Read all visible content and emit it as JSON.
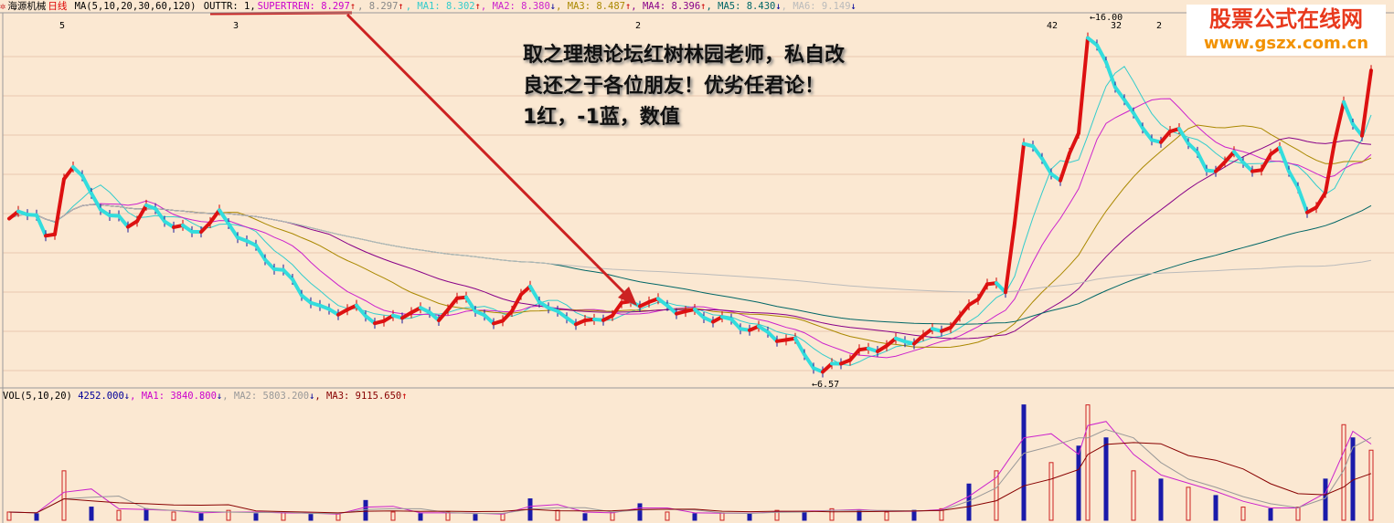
{
  "header": {
    "icon": "gear-icon",
    "stock_name": "海源机械",
    "period": "日线",
    "indicator": "MA(5,10,20,30,60,120)",
    "outtr": "OUTTR: 1,",
    "supertrend": "SUPERTREN: 8.297",
    "supertrend_arrow": "↑",
    "supertrend2": ", 8.297",
    "supertrend2_arrow": "↑",
    "ma": [
      {
        "label": ", MA1: 8.302",
        "arrow": "↑",
        "color": "#33cccc",
        "arrow_color": "#cc0000"
      },
      {
        "label": ", MA2: 8.380",
        "arrow": "↓",
        "color": "#cc22cc",
        "arrow_color": "#000099"
      },
      {
        "label": ", MA3: 8.487",
        "arrow": "↑",
        "color": "#aa8800",
        "arrow_color": "#cc0000"
      },
      {
        "label": ", MA4: 8.396",
        "arrow": "↑",
        "color": "#880088",
        "arrow_color": "#cc0000"
      },
      {
        "label": ", MA5: 8.430",
        "arrow": "↓",
        "color": "#006666",
        "arrow_color": "#000099"
      },
      {
        "label": ", MA6: 9.149",
        "arrow": "↓",
        "color": "#bbbbbb",
        "arrow_color": "#000099"
      }
    ]
  },
  "volume_header": {
    "indicator": "VOL(5,10,20)",
    "value": "4252.000",
    "value_arrow": "↓",
    "ma1": ", MA1: 3840.800",
    "ma1_arrow": "↓",
    "ma2": ", MA2: 5803.200",
    "ma2_arrow": "↓",
    "ma3": ", MA3: 9115.650",
    "ma3_arrow": "↑"
  },
  "markers": [
    {
      "text": "5",
      "bar": 3
    },
    {
      "text": "3",
      "bar": 22
    },
    {
      "text": "2",
      "bar": 66
    },
    {
      "text": "42",
      "bar": 111
    },
    {
      "text": "32",
      "bar": 118
    },
    {
      "text": "2",
      "bar": 123
    }
  ],
  "annotation": {
    "lines": [
      "取之理想论坛红树林园老师，私自改",
      "良还之于各位朋友！优劣任君论！",
      "1红，-1蓝，数值"
    ]
  },
  "logo": {
    "line1": "股票公式在线网",
    "line2": "www.gszx.com.cn"
  },
  "colors": {
    "background": "#fbe8d2",
    "up_trend": "#dd1111",
    "down_trend": "#33dddd",
    "annotation_arrow": "#cc2222"
  },
  "chart_data": [
    {
      "type": "line",
      "title": "海源机械 日线",
      "high_label": "16.00",
      "low_label": "6.57",
      "ylim": [
        6.4,
        16.4
      ],
      "key_closes": [
        [
          0,
          10.8
        ],
        [
          3,
          11.0
        ],
        [
          4,
          10.3
        ],
        [
          5,
          10.3
        ],
        [
          6,
          11.9
        ],
        [
          7,
          12.2
        ],
        [
          9,
          11.4
        ],
        [
          11,
          10.9
        ],
        [
          13,
          10.6
        ],
        [
          15,
          11.1
        ],
        [
          17,
          10.8
        ],
        [
          20,
          10.4
        ],
        [
          23,
          10.9
        ],
        [
          26,
          10.2
        ],
        [
          30,
          9.4
        ],
        [
          34,
          8.45
        ],
        [
          38,
          8.45
        ],
        [
          41,
          8.1
        ],
        [
          44,
          8.45
        ],
        [
          47,
          8.3
        ],
        [
          50,
          8.8
        ],
        [
          53,
          8.0
        ],
        [
          57,
          9.0
        ],
        [
          60,
          8.3
        ],
        [
          64,
          8.1
        ],
        [
          67,
          8.55
        ],
        [
          70,
          8.7
        ],
        [
          74,
          8.4
        ],
        [
          78,
          8.2
        ],
        [
          83,
          7.85
        ],
        [
          86,
          7.6
        ],
        [
          89,
          6.8
        ],
        [
          91,
          7.15
        ],
        [
          95,
          7.5
        ],
        [
          100,
          7.75
        ],
        [
          104,
          8.2
        ],
        [
          107,
          9.15
        ],
        [
          109,
          8.9
        ],
        [
          111,
          12.7
        ],
        [
          113,
          12.4
        ],
        [
          115,
          11.7
        ],
        [
          117,
          13.1
        ],
        [
          118,
          15.5
        ],
        [
          120,
          14.8
        ],
        [
          121,
          14.3
        ],
        [
          123,
          13.4
        ],
        [
          126,
          12.7
        ],
        [
          128,
          13.2
        ],
        [
          131,
          12.0
        ],
        [
          134,
          12.4
        ],
        [
          137,
          12.0
        ],
        [
          139,
          12.7
        ],
        [
          142,
          10.9
        ],
        [
          144,
          11.5
        ],
        [
          146,
          13.8
        ],
        [
          148,
          12.9
        ],
        [
          149,
          14.5
        ]
      ],
      "series": [
        {
          "name": "MA1",
          "period": 5
        },
        {
          "name": "MA2",
          "period": 10
        },
        {
          "name": "MA3",
          "period": 20
        },
        {
          "name": "MA4",
          "period": 30
        },
        {
          "name": "MA5",
          "period": 60
        },
        {
          "name": "MA6",
          "period": 120
        }
      ]
    },
    {
      "type": "bar",
      "title": "VOL(5,10,20)",
      "ylim": [
        0,
        7200
      ],
      "bars": [
        [
          0,
          500
        ],
        [
          3,
          400
        ],
        [
          6,
          3000
        ],
        [
          9,
          800
        ],
        [
          12,
          600
        ],
        [
          15,
          700
        ],
        [
          18,
          500
        ],
        [
          21,
          400
        ],
        [
          24,
          600
        ],
        [
          27,
          400
        ],
        [
          30,
          500
        ],
        [
          33,
          350
        ],
        [
          36,
          400
        ],
        [
          39,
          1200
        ],
        [
          42,
          500
        ],
        [
          45,
          400
        ],
        [
          48,
          500
        ],
        [
          51,
          350
        ],
        [
          54,
          400
        ],
        [
          57,
          1300
        ],
        [
          60,
          600
        ],
        [
          63,
          400
        ],
        [
          66,
          500
        ],
        [
          69,
          1000
        ],
        [
          72,
          500
        ],
        [
          75,
          400
        ],
        [
          78,
          450
        ],
        [
          81,
          400
        ],
        [
          84,
          600
        ],
        [
          87,
          500
        ],
        [
          90,
          700
        ],
        [
          93,
          600
        ],
        [
          96,
          500
        ],
        [
          99,
          600
        ],
        [
          102,
          700
        ],
        [
          105,
          2200
        ],
        [
          108,
          3000
        ],
        [
          111,
          7000
        ],
        [
          114,
          3500
        ],
        [
          117,
          4500
        ],
        [
          118,
          7000
        ],
        [
          120,
          5000
        ],
        [
          123,
          3000
        ],
        [
          126,
          2500
        ],
        [
          129,
          2000
        ],
        [
          132,
          1500
        ],
        [
          135,
          800
        ],
        [
          138,
          700
        ],
        [
          141,
          800
        ],
        [
          144,
          2500
        ],
        [
          146,
          5800
        ],
        [
          147,
          5000
        ],
        [
          149,
          4252
        ]
      ]
    }
  ]
}
